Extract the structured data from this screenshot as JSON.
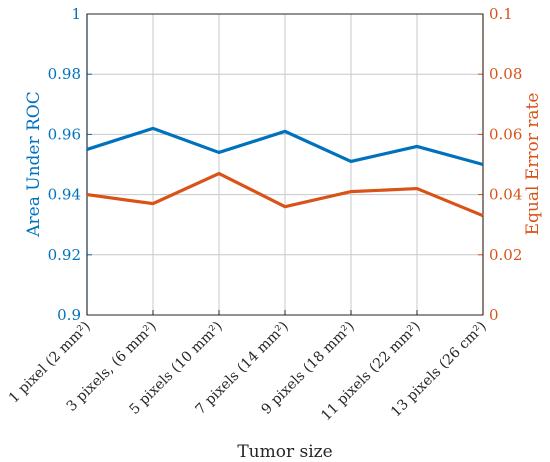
{
  "chart_data": {
    "type": "line",
    "categories": [
      "1 pixel (2 mm²)",
      "3 pixels, (6 mm²)",
      "5 pixels (10 mm²)",
      "7 pixels (14 mm²)",
      "9 pixels (18 mm²)",
      "11 pixels (22 mm²)",
      "13 pixels (26 cm²)"
    ],
    "xlabel": "Tumor size",
    "ylabel_left": "Area Under ROC",
    "ylabel_right": "Equal Error rate",
    "ylim_left": [
      0.9,
      1.0
    ],
    "ylim_right": [
      0,
      0.1
    ],
    "yticks_left": [
      "0.9",
      "0.92",
      "0.94",
      "0.96",
      "0.98",
      "1"
    ],
    "yticks_right": [
      "0",
      "0.02",
      "0.04",
      "0.06",
      "0.08",
      "0.1"
    ],
    "grid": true,
    "series": [
      {
        "axis": "left",
        "color": "#0072bd",
        "values": [
          0.955,
          0.962,
          0.954,
          0.961,
          0.951,
          0.956,
          0.95
        ]
      },
      {
        "axis": "right",
        "color": "#d95319",
        "values": [
          0.04,
          0.037,
          0.047,
          0.036,
          0.041,
          0.042,
          0.033
        ]
      }
    ]
  }
}
